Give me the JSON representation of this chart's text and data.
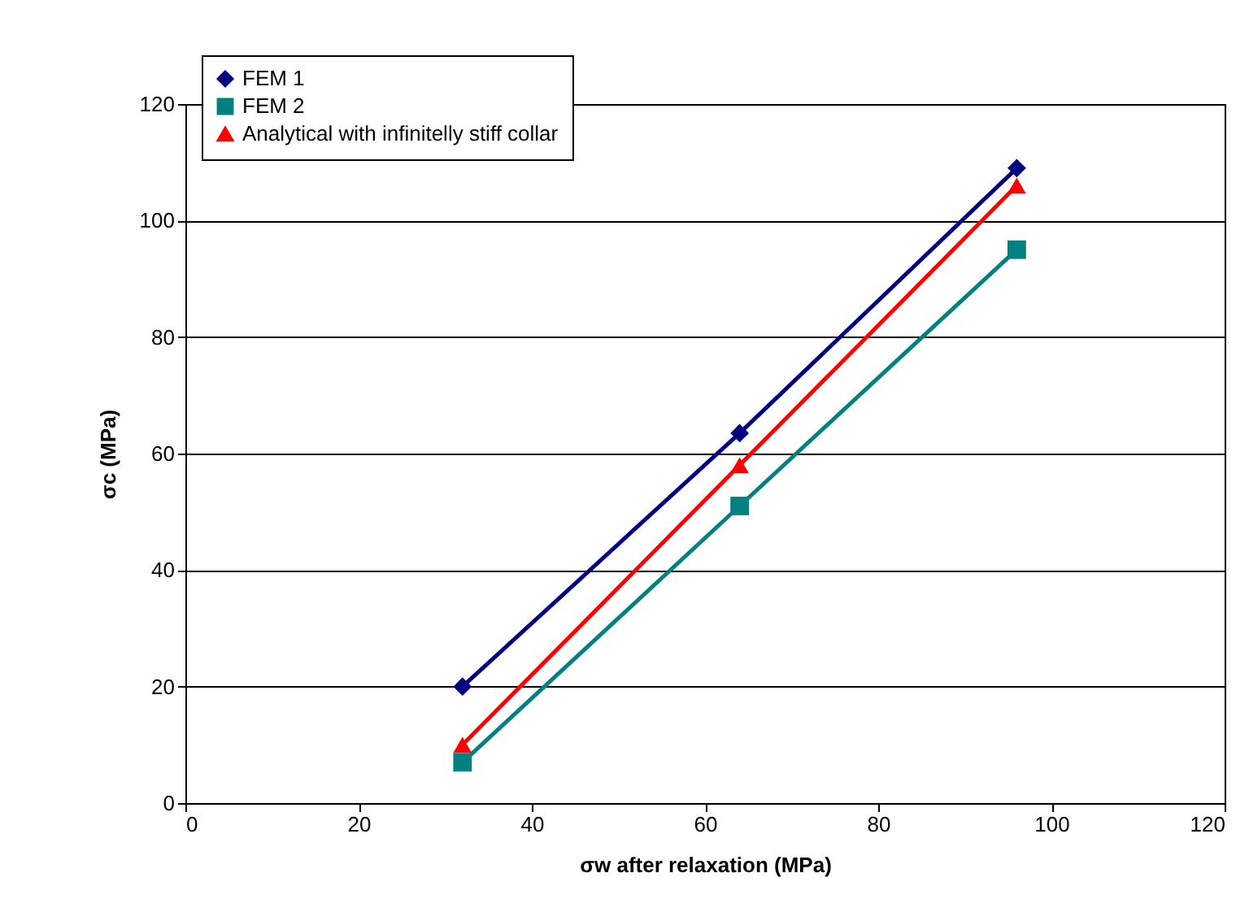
{
  "chart_data": {
    "type": "line",
    "xlabel": "σw after relaxation (MPa)",
    "ylabel": "σc (MPa)",
    "xlim": [
      0,
      120
    ],
    "xticks": [
      0,
      20,
      40,
      60,
      80,
      100,
      120
    ],
    "ylim": [
      0,
      120
    ],
    "yticks": [
      0,
      20,
      40,
      60,
      80,
      100,
      120
    ],
    "grid": "y",
    "legend": "top left",
    "line_style": "solid",
    "series": [
      {
        "name": "FEM 1",
        "color": "#000080",
        "marker": "diamond",
        "x": [
          32,
          64,
          96
        ],
        "values": [
          20,
          63.5,
          109
        ]
      },
      {
        "name": "FEM 2",
        "color": "#008080",
        "marker": "square",
        "x": [
          32,
          64,
          96
        ],
        "values": [
          7,
          51,
          95
        ]
      },
      {
        "name": "Analytical with infinitelly stiff collar",
        "color": "#ff0000",
        "marker": "triangle",
        "x": [
          32,
          64,
          96
        ],
        "values": [
          10,
          58,
          106
        ]
      }
    ]
  }
}
